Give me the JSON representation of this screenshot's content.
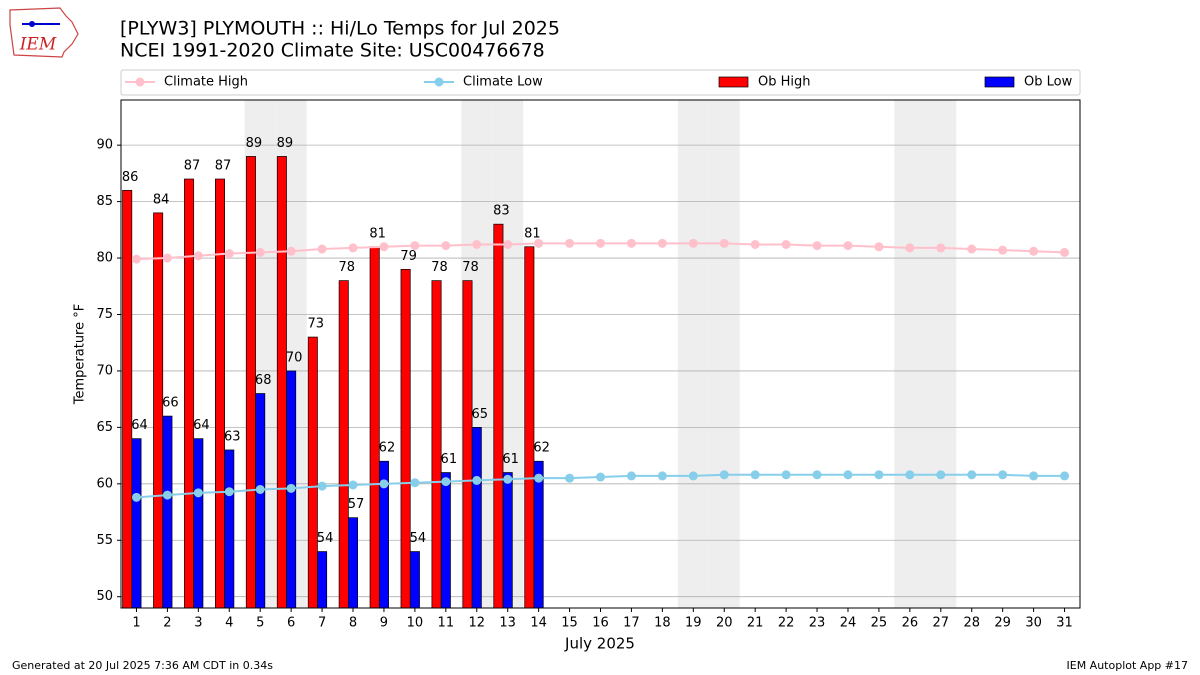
{
  "chart_data": {
    "type": "bar",
    "logo_text": "IEM",
    "title": "[PLYW3] PLYMOUTH :: Hi/Lo Temps for Jul 2025",
    "subtitle": "NCEI 1991-2020 Climate Site: USC00476678",
    "ylabel": "Temperature °F",
    "xlabel": "July 2025",
    "footer_left": "Generated at 20 Jul 2025 7:36 AM CDT in 0.34s",
    "footer_right": "IEM Autoplot App #17",
    "x": [
      1,
      2,
      3,
      4,
      5,
      6,
      7,
      8,
      9,
      10,
      11,
      12,
      13,
      14,
      15,
      16,
      17,
      18,
      19,
      20,
      21,
      22,
      23,
      24,
      25,
      26,
      27,
      28,
      29,
      30,
      31
    ],
    "xlim": [
      0.5,
      31.5
    ],
    "xticks": [
      1,
      2,
      3,
      4,
      5,
      6,
      7,
      8,
      9,
      10,
      11,
      12,
      13,
      14,
      15,
      16,
      17,
      18,
      19,
      20,
      21,
      22,
      23,
      24,
      25,
      26,
      27,
      28,
      29,
      30,
      31
    ],
    "ylim": [
      49,
      94
    ],
    "yticks": [
      50,
      55,
      60,
      65,
      70,
      75,
      80,
      85,
      90
    ],
    "grid": true,
    "shaded_days": [
      5,
      6,
      12,
      13,
      19,
      20,
      26,
      27
    ],
    "series": [
      {
        "name": "Climate High",
        "type": "line",
        "color": "#ffc0cb",
        "values": [
          79.9,
          80.0,
          80.2,
          80.4,
          80.5,
          80.6,
          80.8,
          80.9,
          81.0,
          81.1,
          81.1,
          81.2,
          81.2,
          81.3,
          81.3,
          81.3,
          81.3,
          81.3,
          81.3,
          81.3,
          81.2,
          81.2,
          81.1,
          81.1,
          81.0,
          80.9,
          80.9,
          80.8,
          80.7,
          80.6,
          80.5
        ]
      },
      {
        "name": "Climate Low",
        "type": "line",
        "color": "#87ceeb",
        "values": [
          58.8,
          59.0,
          59.2,
          59.3,
          59.5,
          59.6,
          59.8,
          59.9,
          60.0,
          60.1,
          60.2,
          60.3,
          60.4,
          60.5,
          60.5,
          60.6,
          60.7,
          60.7,
          60.7,
          60.8,
          60.8,
          60.8,
          60.8,
          60.8,
          60.8,
          60.8,
          60.8,
          60.8,
          60.8,
          60.7,
          60.7
        ]
      },
      {
        "name": "Ob High",
        "type": "bar",
        "color": "#ff0000",
        "values": [
          86,
          84,
          87,
          87,
          89,
          89,
          73,
          78,
          81,
          79,
          78,
          78,
          83,
          81,
          null,
          null,
          null,
          null,
          null,
          null,
          null,
          null,
          null,
          null,
          null,
          null,
          null,
          null,
          null,
          null,
          null
        ]
      },
      {
        "name": "Ob Low",
        "type": "bar",
        "color": "#0000ff",
        "values": [
          64,
          66,
          64,
          63,
          68,
          70,
          54,
          57,
          62,
          54,
          61,
          65,
          61,
          62,
          null,
          null,
          null,
          null,
          null,
          null,
          null,
          null,
          null,
          null,
          null,
          null,
          null,
          null,
          null,
          null,
          null
        ]
      }
    ]
  }
}
